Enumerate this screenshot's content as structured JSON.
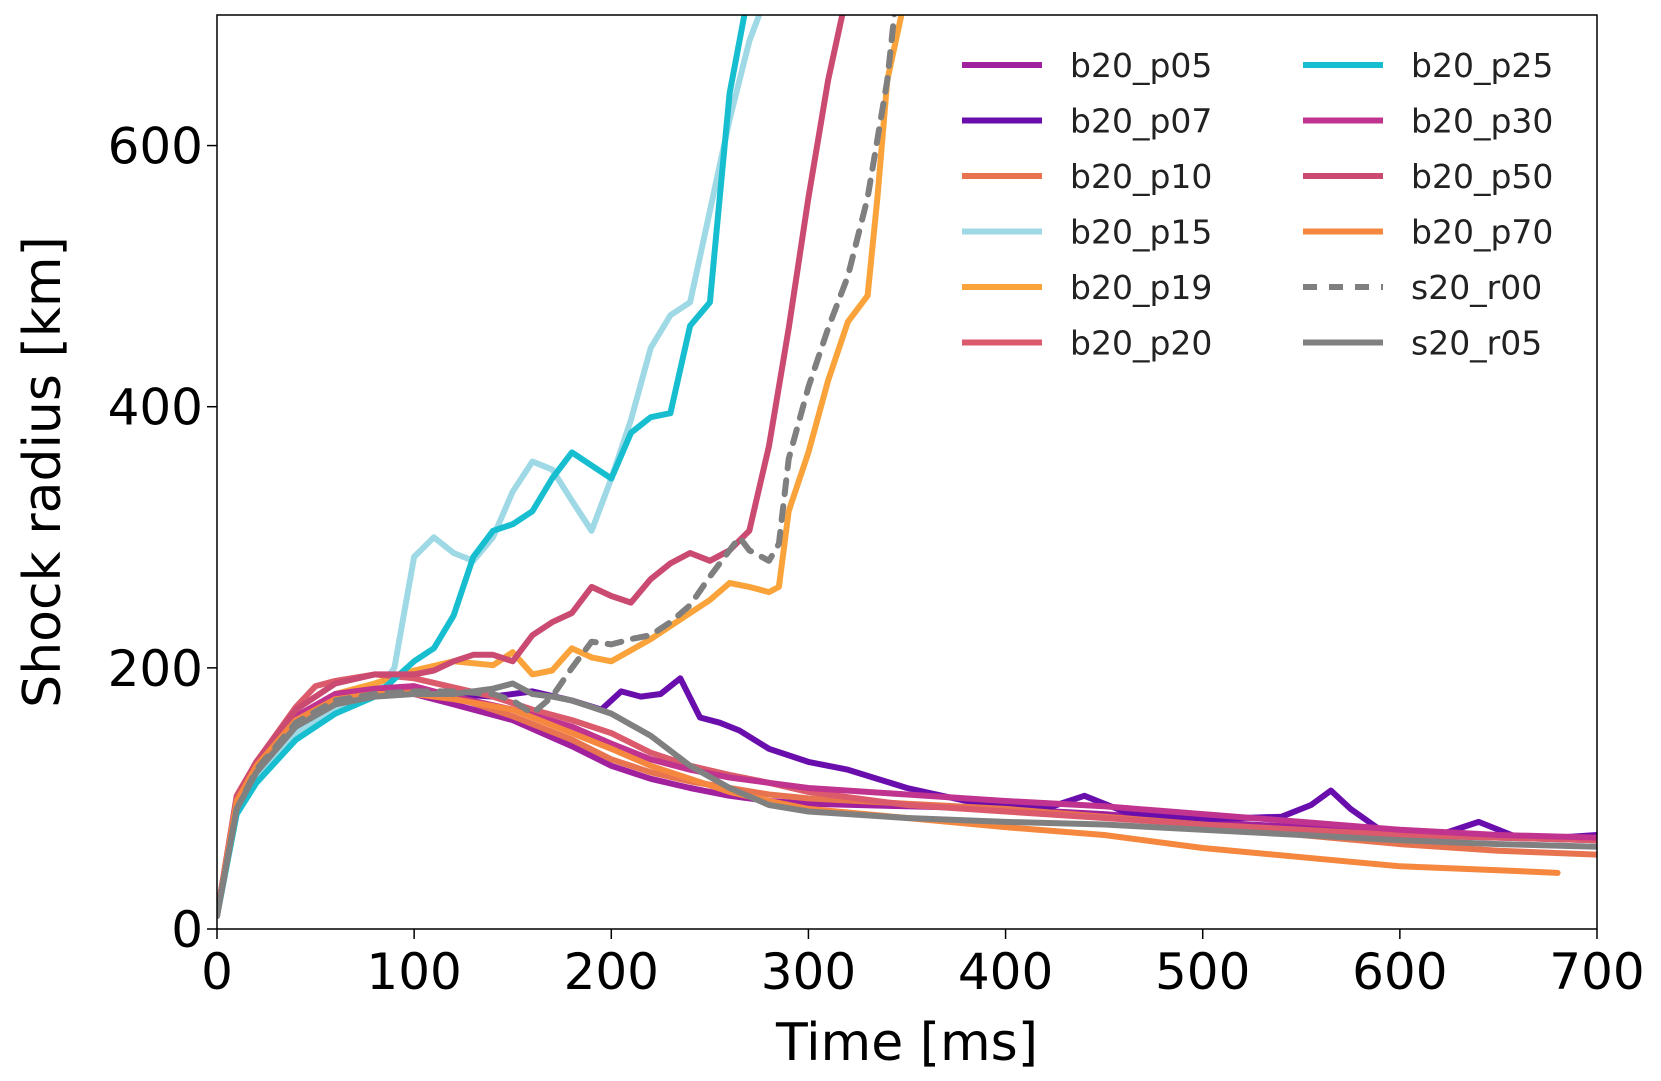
{
  "chart_data": {
    "type": "line",
    "title": "",
    "xlabel": "Time [ms]",
    "ylabel": "Shock radius [km]",
    "xlim": [
      0,
      700
    ],
    "ylim": [
      0,
      700
    ],
    "xticks": [
      0,
      100,
      200,
      300,
      400,
      500,
      600,
      700
    ],
    "yticks": [
      0,
      200,
      400,
      600
    ],
    "grid": false,
    "legend": {
      "position": "top-right",
      "columns": 2
    },
    "series": [
      {
        "name": "b20_p05",
        "color": "#a0209e",
        "dash": false,
        "x": [
          0,
          10,
          20,
          40,
          60,
          80,
          100,
          120,
          150,
          180,
          200,
          220,
          240,
          260,
          280,
          300,
          350,
          400,
          450,
          500,
          550,
          600,
          650,
          700
        ],
        "y": [
          10,
          100,
          125,
          158,
          175,
          180,
          180,
          172,
          160,
          140,
          125,
          115,
          108,
          102,
          98,
          96,
          94,
          92,
          88,
          82,
          78,
          72,
          70,
          68
        ]
      },
      {
        "name": "b20_p07",
        "color": "#6a0dad",
        "dash": false,
        "x": [
          0,
          10,
          20,
          40,
          60,
          80,
          100,
          120,
          140,
          160,
          180,
          195,
          205,
          215,
          225,
          235,
          245,
          255,
          265,
          280,
          300,
          320,
          350,
          380,
          400,
          420,
          440,
          460,
          480,
          500,
          520,
          540,
          555,
          565,
          575,
          590,
          620,
          640,
          660,
          680,
          700
        ],
        "y": [
          10,
          100,
          125,
          160,
          178,
          182,
          183,
          180,
          178,
          182,
          175,
          168,
          182,
          178,
          180,
          192,
          162,
          158,
          152,
          138,
          128,
          122,
          108,
          98,
          95,
          92,
          102,
          90,
          86,
          84,
          85,
          86,
          95,
          106,
          92,
          76,
          72,
          82,
          70,
          70,
          72
        ]
      },
      {
        "name": "b20_p10",
        "color": "#e8734f",
        "dash": false,
        "x": [
          0,
          10,
          20,
          40,
          60,
          80,
          100,
          120,
          150,
          180,
          200,
          220,
          240,
          260,
          280,
          300,
          350,
          400,
          450,
          500,
          550,
          600,
          650,
          700
        ],
        "y": [
          10,
          95,
          125,
          162,
          178,
          182,
          183,
          178,
          163,
          145,
          130,
          120,
          113,
          108,
          103,
          100,
          96,
          92,
          86,
          80,
          72,
          65,
          60,
          57
        ]
      },
      {
        "name": "b20_p15",
        "color": "#9fd9e6",
        "dash": false,
        "x": [
          0,
          10,
          20,
          40,
          60,
          80,
          90,
          100,
          110,
          120,
          130,
          140,
          150,
          160,
          170,
          180,
          190,
          200,
          210,
          220,
          230,
          240,
          250,
          260,
          270,
          280
        ],
        "y": [
          10,
          90,
          118,
          150,
          170,
          180,
          200,
          285,
          300,
          288,
          282,
          300,
          335,
          358,
          352,
          328,
          305,
          345,
          390,
          445,
          470,
          480,
          550,
          620,
          680,
          720
        ]
      },
      {
        "name": "b20_p19",
        "color": "#f9a33a",
        "dash": false,
        "x": [
          0,
          10,
          20,
          40,
          60,
          80,
          100,
          120,
          140,
          150,
          160,
          170,
          180,
          190,
          200,
          220,
          240,
          250,
          260,
          270,
          280,
          285,
          290,
          300,
          310,
          320,
          330,
          335,
          340,
          350
        ],
        "y": [
          10,
          100,
          125,
          160,
          180,
          188,
          198,
          205,
          202,
          212,
          195,
          198,
          215,
          208,
          205,
          222,
          242,
          252,
          265,
          262,
          258,
          262,
          320,
          365,
          420,
          465,
          485,
          560,
          650,
          720
        ]
      },
      {
        "name": "b20_p20",
        "color": "#db5a6b",
        "dash": false,
        "x": [
          0,
          10,
          20,
          40,
          50,
          60,
          80,
          100,
          120,
          140,
          160,
          180,
          200,
          220,
          240,
          260,
          280,
          300,
          350,
          400,
          450,
          500,
          550,
          600,
          650,
          700
        ],
        "y": [
          10,
          102,
          128,
          170,
          186,
          190,
          195,
          192,
          185,
          178,
          168,
          160,
          150,
          135,
          125,
          118,
          112,
          105,
          95,
          90,
          85,
          80,
          76,
          72,
          70,
          68
        ]
      },
      {
        "name": "b20_p25",
        "color": "#17becf",
        "dash": false,
        "x": [
          0,
          10,
          20,
          40,
          60,
          80,
          100,
          110,
          120,
          130,
          140,
          150,
          160,
          170,
          180,
          190,
          200,
          210,
          220,
          230,
          240,
          250,
          255,
          260,
          270,
          280
        ],
        "y": [
          10,
          88,
          112,
          145,
          165,
          178,
          205,
          215,
          240,
          285,
          305,
          310,
          320,
          345,
          365,
          355,
          345,
          380,
          392,
          395,
          462,
          480,
          560,
          640,
          720,
          760
        ]
      },
      {
        "name": "b20_p30",
        "color": "#c0338f",
        "dash": false,
        "x": [
          0,
          10,
          20,
          40,
          60,
          80,
          100,
          120,
          150,
          180,
          200,
          220,
          240,
          260,
          280,
          300,
          350,
          400,
          450,
          500,
          550,
          600,
          650,
          700
        ],
        "y": [
          10,
          100,
          128,
          163,
          180,
          184,
          186,
          178,
          168,
          155,
          142,
          130,
          122,
          116,
          112,
          108,
          103,
          98,
          94,
          88,
          82,
          76,
          72,
          70
        ]
      },
      {
        "name": "b20_p50",
        "color": "#cb4a72",
        "dash": false,
        "x": [
          0,
          10,
          20,
          40,
          60,
          80,
          100,
          110,
          120,
          130,
          140,
          150,
          160,
          170,
          180,
          190,
          200,
          210,
          220,
          230,
          240,
          250,
          260,
          270,
          280,
          290,
          300,
          310,
          320
        ],
        "y": [
          10,
          100,
          128,
          168,
          188,
          195,
          195,
          198,
          205,
          210,
          210,
          205,
          225,
          235,
          242,
          262,
          255,
          250,
          268,
          280,
          288,
          282,
          290,
          305,
          370,
          460,
          560,
          650,
          720
        ]
      },
      {
        "name": "b20_p70",
        "color": "#f5873e",
        "dash": false,
        "x": [
          0,
          10,
          20,
          40,
          60,
          80,
          100,
          120,
          150,
          180,
          200,
          220,
          240,
          260,
          280,
          300,
          350,
          400,
          450,
          500,
          550,
          600,
          650,
          680
        ],
        "y": [
          10,
          98,
          125,
          160,
          176,
          180,
          180,
          176,
          168,
          150,
          138,
          125,
          115,
          105,
          98,
          92,
          85,
          78,
          72,
          62,
          55,
          48,
          45,
          43
        ]
      },
      {
        "name": "s20_r00",
        "color": "#7f7f7f",
        "dash": true,
        "x": [
          0,
          10,
          20,
          40,
          60,
          80,
          100,
          120,
          140,
          150,
          160,
          170,
          180,
          190,
          200,
          210,
          220,
          230,
          240,
          250,
          260,
          265,
          270,
          280,
          285,
          290,
          300,
          310,
          320,
          330,
          340,
          345
        ],
        "y": [
          10,
          92,
          122,
          158,
          175,
          180,
          182,
          182,
          180,
          175,
          165,
          178,
          200,
          220,
          218,
          222,
          225,
          235,
          248,
          270,
          290,
          300,
          290,
          282,
          295,
          360,
          415,
          460,
          500,
          560,
          650,
          720
        ]
      },
      {
        "name": "s20_r05",
        "color": "#808080",
        "dash": false,
        "x": [
          0,
          10,
          20,
          40,
          60,
          80,
          100,
          120,
          140,
          150,
          160,
          170,
          180,
          190,
          200,
          220,
          240,
          260,
          280,
          300,
          350,
          400,
          450,
          500,
          550,
          600,
          650,
          700
        ],
        "y": [
          10,
          92,
          120,
          155,
          172,
          178,
          180,
          180,
          184,
          188,
          180,
          178,
          175,
          170,
          165,
          148,
          125,
          108,
          95,
          90,
          85,
          82,
          80,
          76,
          72,
          68,
          65,
          63
        ]
      }
    ]
  }
}
